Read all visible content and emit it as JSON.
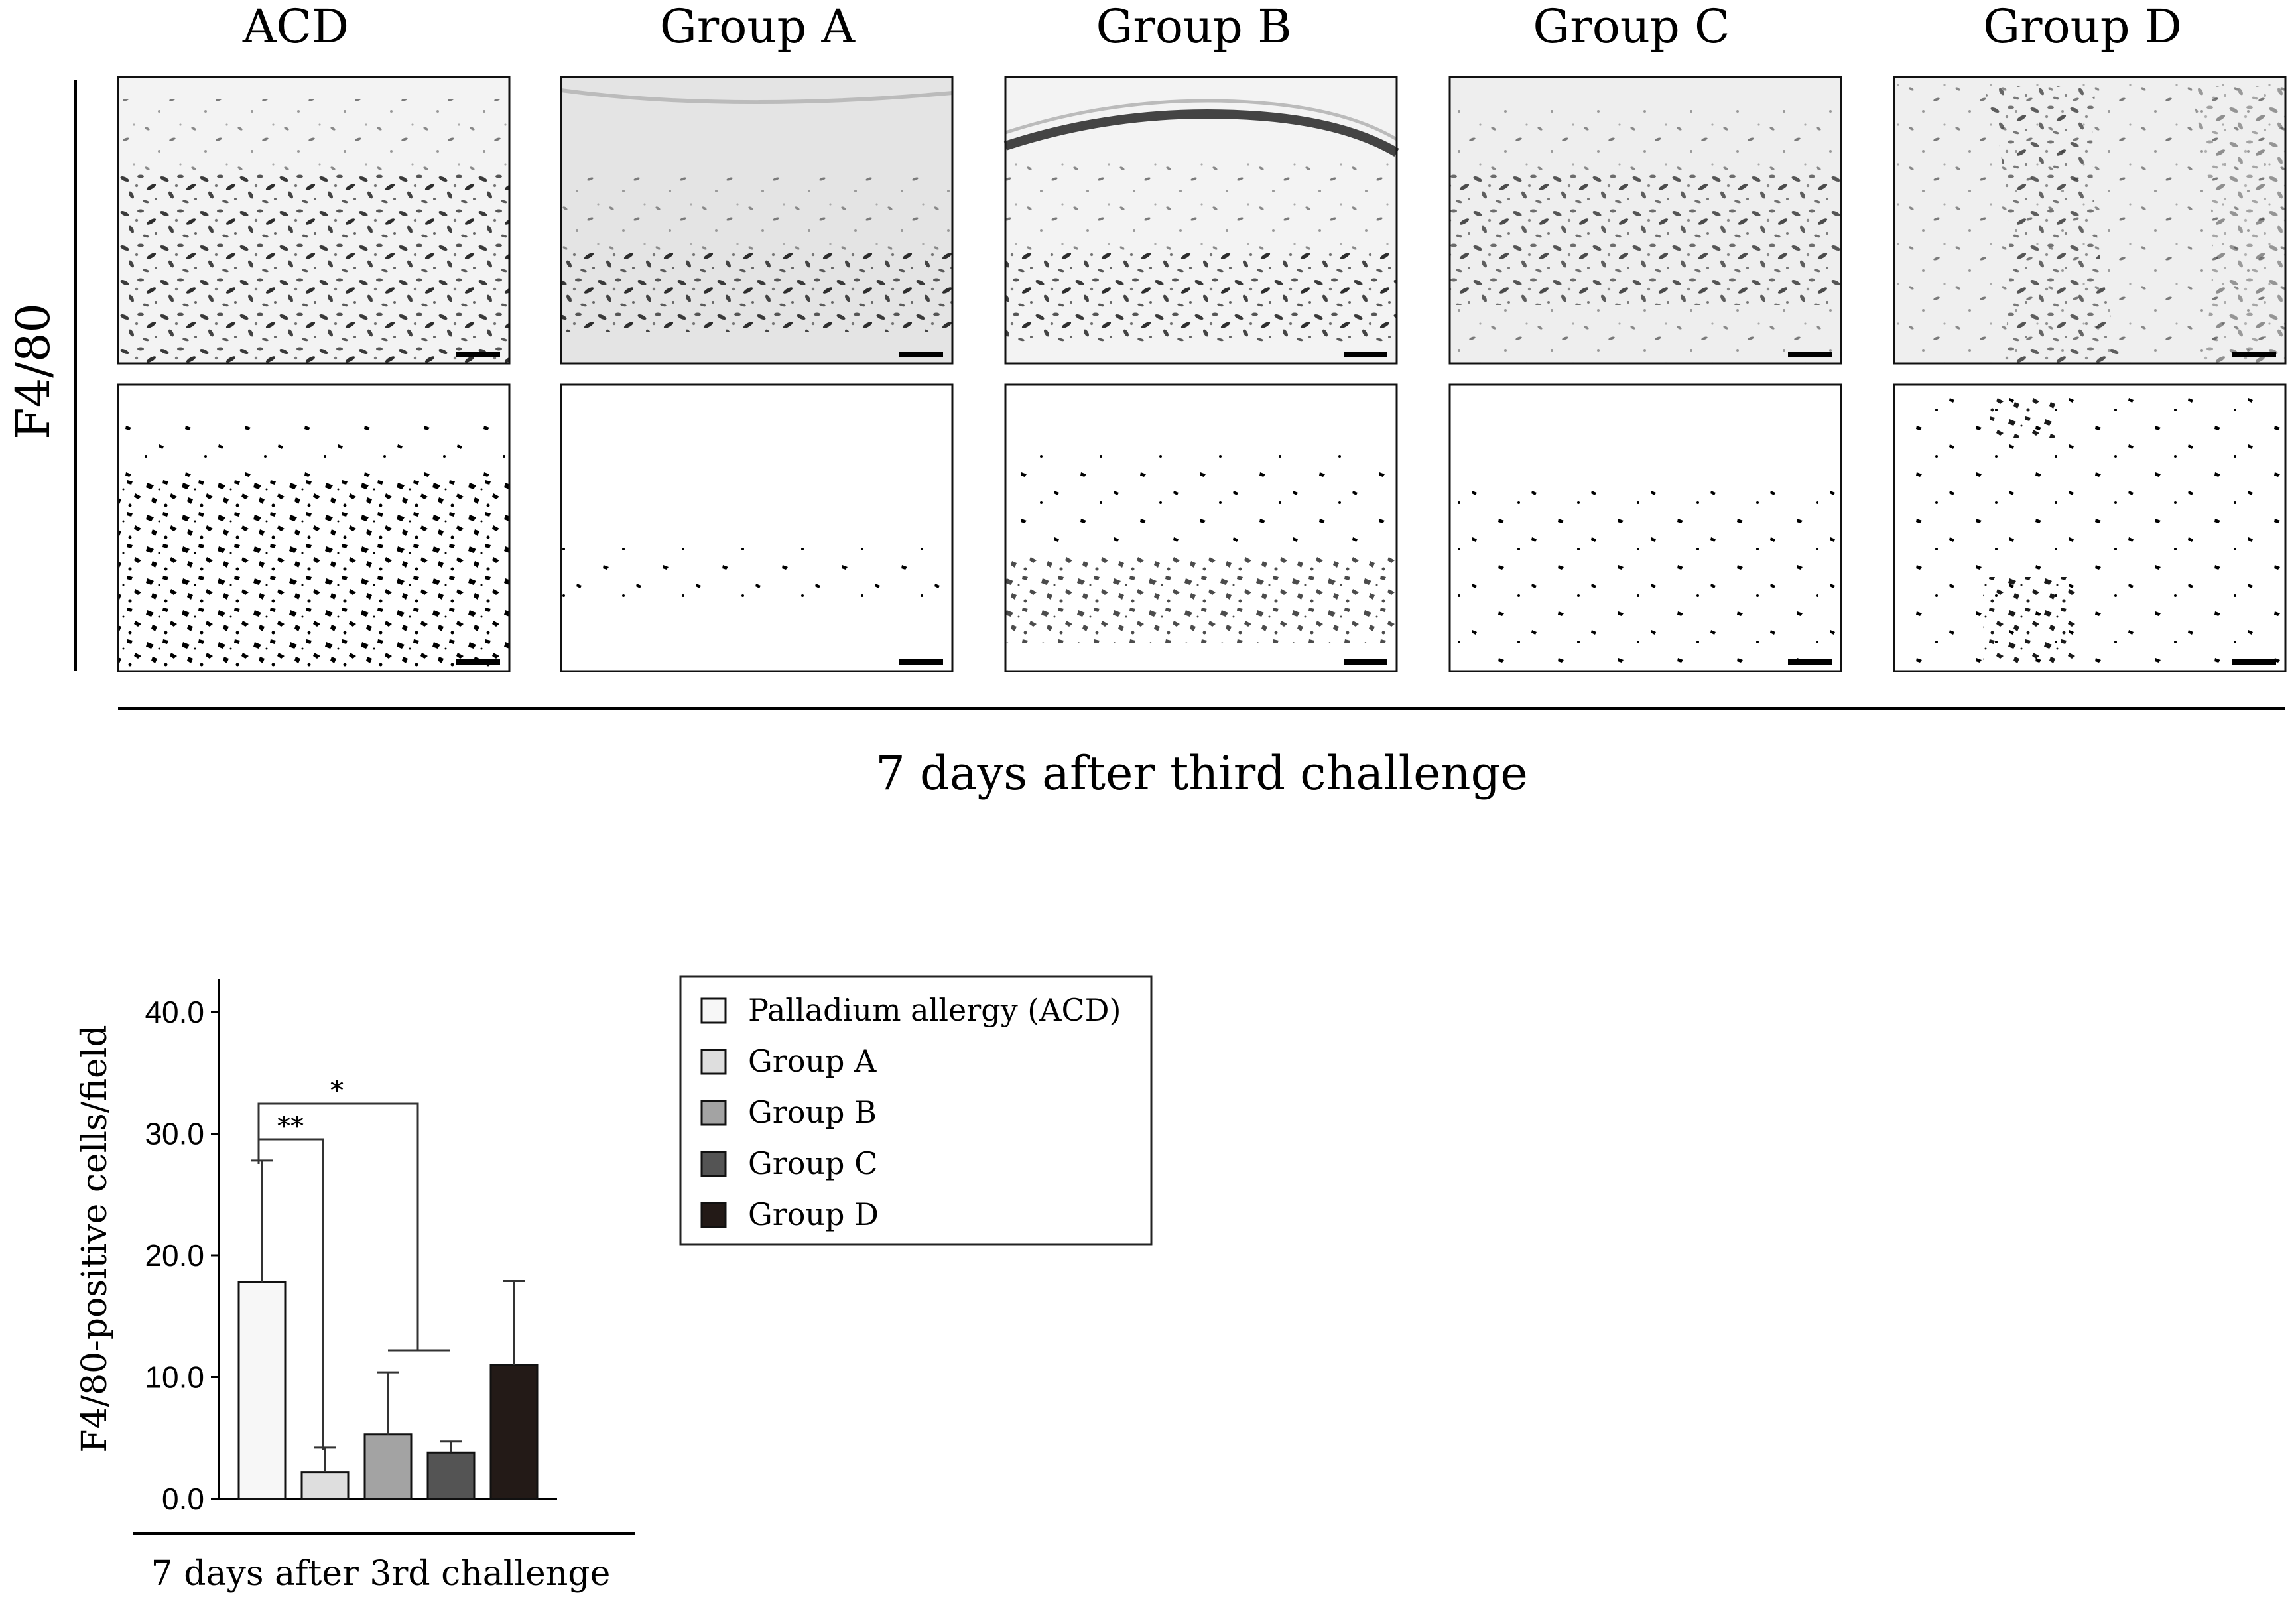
{
  "panel_a": {
    "column_headers": [
      "ACD",
      "Group A",
      "Group B",
      "Group C",
      "Group D"
    ],
    "row_label": "F4/80",
    "footer_label": "7 days after third challenge"
  },
  "chart_data": {
    "type": "bar",
    "categories": [
      "Palladium allergy (ACD)",
      "Group A",
      "Group B",
      "Group C",
      "Group D"
    ],
    "values": [
      17.8,
      2.2,
      5.3,
      3.8,
      11.0
    ],
    "errors": [
      10.0,
      2.0,
      5.1,
      0.9,
      6.9
    ],
    "colors": [
      "#f7f7f7",
      "#dedede",
      "#a3a3a3",
      "#545454",
      "#231a17"
    ],
    "xlabel": "7 days after 3rd challenge",
    "ylabel": "F4/80-positive cells/field",
    "ylim": [
      0,
      40
    ],
    "yticks": [
      "0.0",
      "10.0",
      "20.0",
      "30.0",
      "40.0"
    ],
    "significance": [
      {
        "label": "**",
        "from": "Palladium allergy (ACD)",
        "to": "Group A"
      },
      {
        "label": "*",
        "from": "Palladium allergy (ACD)",
        "to": "Group B–Group C"
      }
    ],
    "legend_position": "right of plot",
    "grid": false
  }
}
